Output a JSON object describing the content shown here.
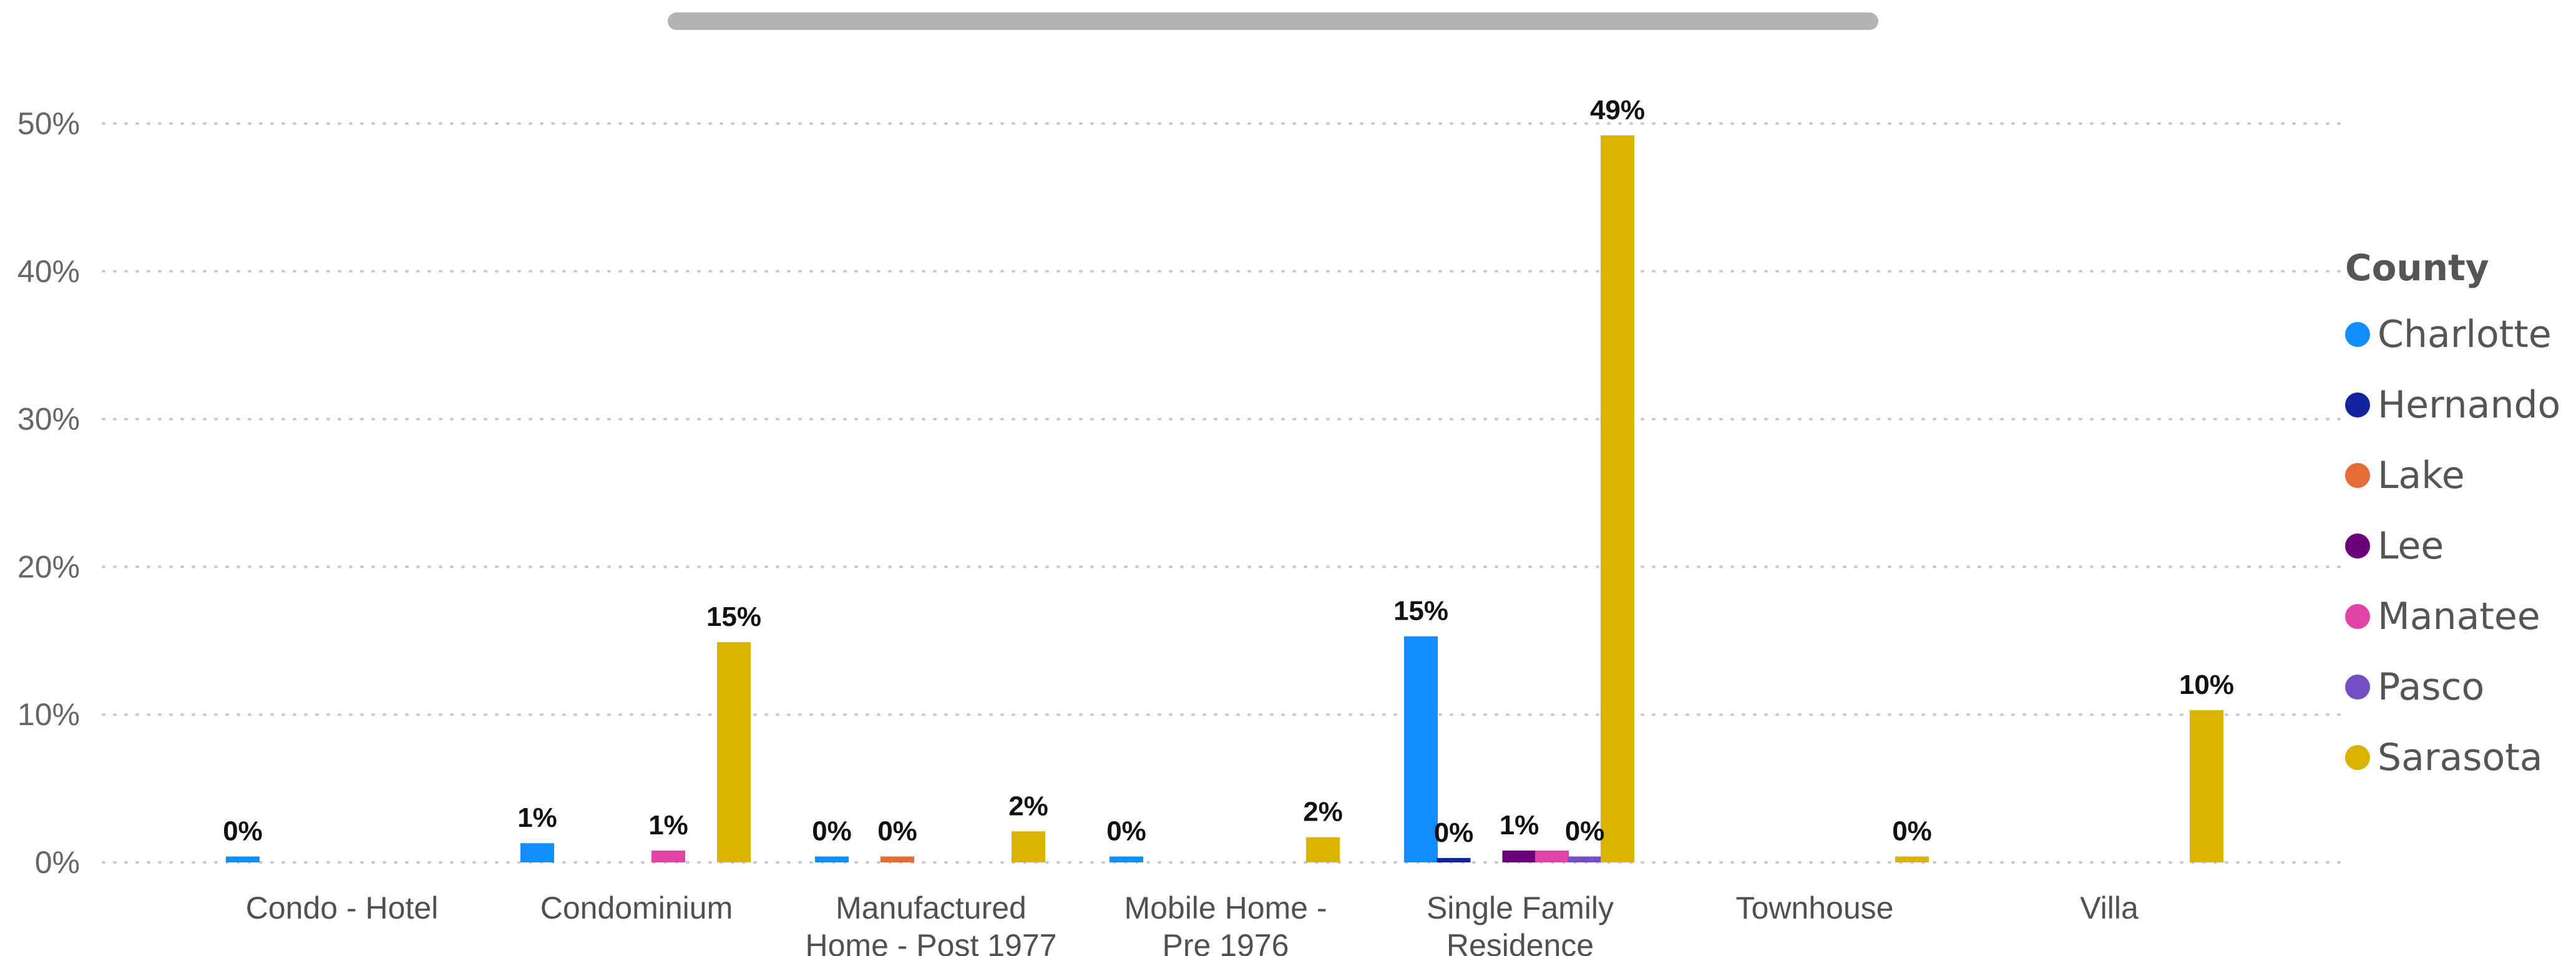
{
  "chart_data": {
    "type": "bar",
    "legend_title": "County",
    "legend_position": "right",
    "grid": true,
    "ylim": [
      0,
      50
    ],
    "y_ticks": [
      "0%",
      "10%",
      "20%",
      "30%",
      "40%",
      "50%"
    ],
    "y_tick_values": [
      0,
      10,
      20,
      30,
      40,
      50
    ],
    "categories": [
      [
        "Condo - Hotel"
      ],
      [
        "Condominium"
      ],
      [
        "Manufactured",
        "Home - Post 1977"
      ],
      [
        "Mobile Home -",
        "Pre 1976"
      ],
      [
        "Single Family",
        "Residence"
      ],
      [
        "Townhouse"
      ],
      [
        "Villa"
      ]
    ],
    "series": [
      {
        "name": "Charlotte",
        "color": "#118DFF",
        "values": [
          0.4,
          1.3,
          0.4,
          0.4,
          15.3,
          null,
          null
        ],
        "labels": [
          "0%",
          "1%",
          "0%",
          "0%",
          "15%",
          "",
          ""
        ]
      },
      {
        "name": "Hernando",
        "color": "#12239E",
        "values": [
          null,
          null,
          null,
          null,
          0.3,
          null,
          null
        ],
        "labels": [
          "",
          "",
          "",
          "",
          "0%",
          "",
          ""
        ]
      },
      {
        "name": "Lake",
        "color": "#E66C37",
        "values": [
          null,
          null,
          0.4,
          null,
          null,
          null,
          null
        ],
        "labels": [
          "",
          "",
          "0%",
          "",
          "",
          "",
          ""
        ]
      },
      {
        "name": "Lee",
        "color": "#6B007B",
        "values": [
          null,
          null,
          null,
          null,
          0.8,
          null,
          null
        ],
        "labels": [
          "",
          "",
          "",
          "",
          "1%",
          "",
          ""
        ]
      },
      {
        "name": "Manatee",
        "color": "#E044A7",
        "values": [
          null,
          0.8,
          null,
          null,
          0.8,
          null,
          null
        ],
        "labels": [
          "",
          "1%",
          "",
          "",
          "",
          "",
          ""
        ]
      },
      {
        "name": "Pasco",
        "color": "#744EC2",
        "values": [
          null,
          null,
          null,
          null,
          0.4,
          null,
          null
        ],
        "labels": [
          "",
          "",
          "",
          "",
          "0%",
          "",
          ""
        ]
      },
      {
        "name": "Sarasota",
        "color": "#D9B300",
        "values": [
          null,
          14.9,
          2.1,
          1.7,
          49.2,
          0.4,
          10.3
        ],
        "labels": [
          "",
          "15%",
          "2%",
          "2%",
          "49%",
          "0%",
          "10%"
        ]
      }
    ]
  }
}
